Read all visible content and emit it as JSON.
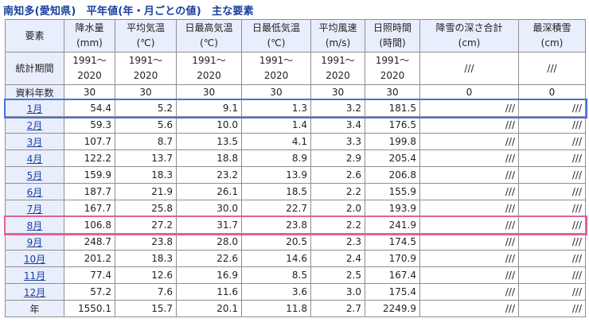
{
  "title": "南知多(愛知県)　平年値(年・月ごとの値)　主な要素",
  "columns": [
    {
      "line1": "要素",
      "line2": ""
    },
    {
      "line1": "降水量",
      "line2": "(mm)"
    },
    {
      "line1": "平均気温",
      "line2": "(℃)"
    },
    {
      "line1": "日最高気温",
      "line2": "(℃)"
    },
    {
      "line1": "日最低気温",
      "line2": "(℃)"
    },
    {
      "line1": "平均風速",
      "line2": "(m/s)"
    },
    {
      "line1": "日照時間",
      "line2": "(時間)"
    },
    {
      "line1": "降雪の深さ合計",
      "line2": "(cm)"
    },
    {
      "line1": "最深積雪",
      "line2": "(cm)"
    }
  ],
  "period_row": {
    "label": "統計期間",
    "cells": [
      {
        "l1": "1991～",
        "l2": "2020"
      },
      {
        "l1": "1991～",
        "l2": "2020"
      },
      {
        "l1": "1991～",
        "l2": "2020"
      },
      {
        "l1": "1991～",
        "l2": "2020"
      },
      {
        "l1": "1991～",
        "l2": "2020"
      },
      {
        "l1": "1991～",
        "l2": "2020"
      },
      {
        "l1": "///",
        "l2": ""
      },
      {
        "l1": "///",
        "l2": ""
      }
    ]
  },
  "count_row": {
    "label": "資料年数",
    "cells": [
      "30",
      "30",
      "30",
      "30",
      "30",
      "30",
      "0",
      "0"
    ]
  },
  "months": [
    {
      "label": "1月",
      "values": [
        "54.4",
        "5.2",
        "9.1",
        "1.3",
        "3.2",
        "181.5",
        "///",
        "///"
      ]
    },
    {
      "label": "2月",
      "values": [
        "59.3",
        "5.6",
        "10.0",
        "1.4",
        "3.4",
        "176.5",
        "///",
        "///"
      ]
    },
    {
      "label": "3月",
      "values": [
        "107.7",
        "8.7",
        "13.5",
        "4.1",
        "3.3",
        "199.8",
        "///",
        "///"
      ]
    },
    {
      "label": "4月",
      "values": [
        "122.2",
        "13.7",
        "18.8",
        "8.9",
        "2.9",
        "205.4",
        "///",
        "///"
      ]
    },
    {
      "label": "5月",
      "values": [
        "159.9",
        "18.3",
        "23.2",
        "13.9",
        "2.6",
        "206.8",
        "///",
        "///"
      ]
    },
    {
      "label": "6月",
      "values": [
        "187.7",
        "21.9",
        "26.1",
        "18.5",
        "2.2",
        "155.9",
        "///",
        "///"
      ]
    },
    {
      "label": "7月",
      "values": [
        "167.7",
        "25.8",
        "30.0",
        "22.7",
        "2.0",
        "193.9",
        "///",
        "///"
      ]
    },
    {
      "label": "8月",
      "values": [
        "106.8",
        "27.2",
        "31.7",
        "23.8",
        "2.2",
        "241.9",
        "///",
        "///"
      ]
    },
    {
      "label": "9月",
      "values": [
        "248.7",
        "23.8",
        "28.0",
        "20.5",
        "2.3",
        "174.5",
        "///",
        "///"
      ]
    },
    {
      "label": "10月",
      "values": [
        "201.2",
        "18.3",
        "22.6",
        "14.6",
        "2.4",
        "170.9",
        "///",
        "///"
      ]
    },
    {
      "label": "11月",
      "values": [
        "77.4",
        "12.6",
        "16.9",
        "8.5",
        "2.5",
        "167.4",
        "///",
        "///"
      ]
    },
    {
      "label": "12月",
      "values": [
        "57.2",
        "7.6",
        "11.6",
        "3.6",
        "3.0",
        "175.4",
        "///",
        "///"
      ]
    }
  ],
  "annual_row": {
    "label": "年",
    "values": [
      "1550.1",
      "15.7",
      "20.1",
      "11.8",
      "2.7",
      "2249.9",
      "///",
      "///"
    ]
  },
  "highlight_colors": {
    "january": "#4a6fe0",
    "august": "#e0609a"
  }
}
